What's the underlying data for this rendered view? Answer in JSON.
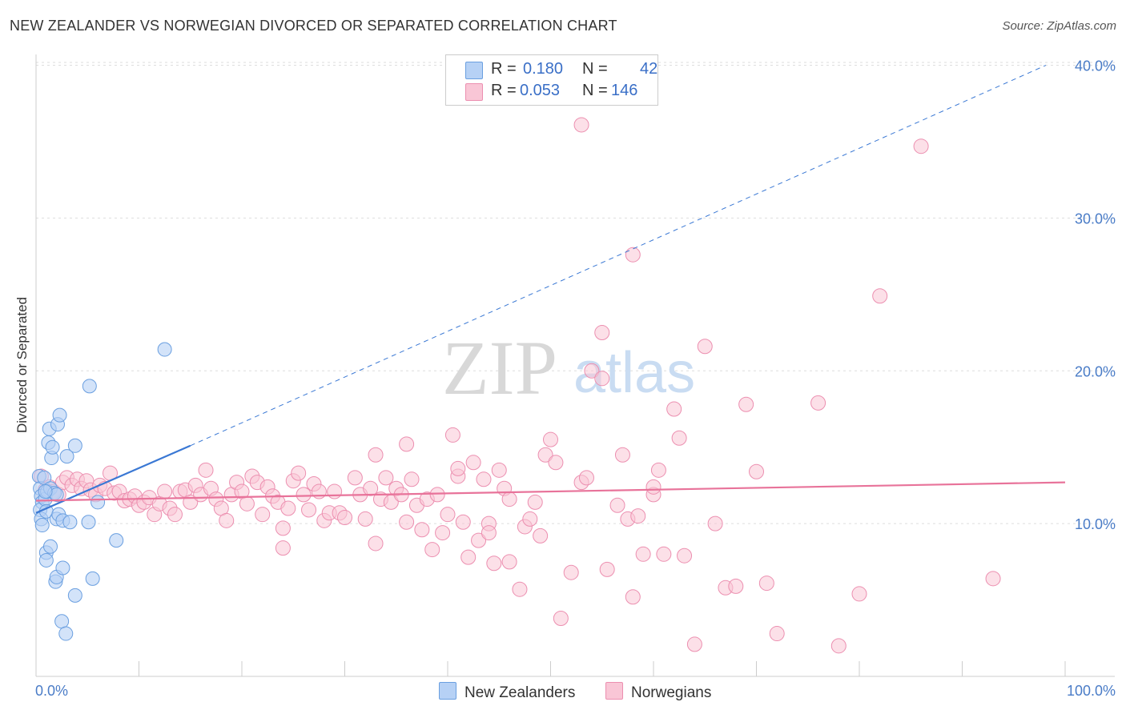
{
  "title": "NEW ZEALANDER VS NORWEGIAN DIVORCED OR SEPARATED CORRELATION CHART",
  "source": "Source: ZipAtlas.com",
  "watermark": {
    "zip": "ZIP",
    "atlas": "atlas"
  },
  "colors": {
    "series1_fill": "#b6d1f5",
    "series1_stroke": "#6a9fe0",
    "series1_line": "#3a78d4",
    "series2_fill": "#f9c6d6",
    "series2_stroke": "#ec8fb0",
    "series2_line": "#e8739a",
    "tick_text": "#4a7cc7",
    "grid": "#dddddd"
  },
  "legend": {
    "rows": [
      {
        "r_label": "R =",
        "r_value": "0.180",
        "n_label": "N =",
        "n_value": "42"
      },
      {
        "r_label": "R =",
        "r_value": "0.053",
        "n_label": "N =",
        "n_value": "146"
      }
    ]
  },
  "bottom_legend": [
    "New Zealanders",
    "Norwegians"
  ],
  "chart_data": {
    "type": "scatter",
    "title": "NEW ZEALANDER VS NORWEGIAN DIVORCED OR SEPARATED CORRELATION CHART",
    "xlabel": "",
    "ylabel": "Divorced or Separated",
    "xlim": [
      0,
      100
    ],
    "ylim": [
      0,
      40
    ],
    "x_tick_labels": [
      "0.0%",
      "100.0%"
    ],
    "y_ticks": [
      10,
      20,
      30,
      40
    ],
    "y_tick_labels": [
      "10.0%",
      "20.0%",
      "30.0%",
      "40.0%"
    ],
    "grid": true,
    "series": [
      {
        "name": "New Zealanders",
        "R": 0.18,
        "N": 42,
        "trend_solid": [
          [
            0.0,
            10.7
          ],
          [
            15.0,
            15.1
          ]
        ],
        "trend_dashed": [
          [
            15.0,
            15.1
          ],
          [
            100.0,
            40.0
          ]
        ],
        "points": [
          [
            0.3,
            13.1
          ],
          [
            0.4,
            12.3
          ],
          [
            0.5,
            11.8
          ],
          [
            0.6,
            11.4
          ],
          [
            0.4,
            10.9
          ],
          [
            0.5,
            10.3
          ],
          [
            0.6,
            9.9
          ],
          [
            0.8,
            13.0
          ],
          [
            0.9,
            11.6
          ],
          [
            1.0,
            10.8
          ],
          [
            1.1,
            12.1
          ],
          [
            1.2,
            15.3
          ],
          [
            1.3,
            16.2
          ],
          [
            1.4,
            12.3
          ],
          [
            1.5,
            14.3
          ],
          [
            1.6,
            15.0
          ],
          [
            1.8,
            12.0
          ],
          [
            2.0,
            10.3
          ],
          [
            2.2,
            10.6
          ],
          [
            2.0,
            11.9
          ],
          [
            2.1,
            16.5
          ],
          [
            2.3,
            17.1
          ],
          [
            2.6,
            10.2
          ],
          [
            3.0,
            14.4
          ],
          [
            3.3,
            10.1
          ],
          [
            3.8,
            15.1
          ],
          [
            5.2,
            19.0
          ],
          [
            5.1,
            10.1
          ],
          [
            6.0,
            11.4
          ],
          [
            7.8,
            8.9
          ],
          [
            12.5,
            21.4
          ],
          [
            1.0,
            8.1
          ],
          [
            1.0,
            7.6
          ],
          [
            1.4,
            8.5
          ],
          [
            1.9,
            6.2
          ],
          [
            2.0,
            6.5
          ],
          [
            2.6,
            7.1
          ],
          [
            3.8,
            5.3
          ],
          [
            2.5,
            3.6
          ],
          [
            2.9,
            2.8
          ],
          [
            5.5,
            6.4
          ],
          [
            0.9,
            12.1
          ]
        ]
      },
      {
        "name": "Norwegians",
        "R": 0.053,
        "N": 146,
        "trend_solid": [
          [
            0.0,
            11.5
          ],
          [
            100.0,
            12.7
          ]
        ],
        "points": [
          [
            0.5,
            13.1
          ],
          [
            0.9,
            12.2
          ],
          [
            1.3,
            12.4
          ],
          [
            1.7,
            12.1
          ],
          [
            2.2,
            11.9
          ],
          [
            2.6,
            12.7
          ],
          [
            3.0,
            13.0
          ],
          [
            3.5,
            12.5
          ],
          [
            4.0,
            12.9
          ],
          [
            4.4,
            12.3
          ],
          [
            4.9,
            12.8
          ],
          [
            5.3,
            12.2
          ],
          [
            5.8,
            11.9
          ],
          [
            6.2,
            12.5
          ],
          [
            6.7,
            12.3
          ],
          [
            7.2,
            13.3
          ],
          [
            7.6,
            12.0
          ],
          [
            8.1,
            12.1
          ],
          [
            8.6,
            11.5
          ],
          [
            9.1,
            11.6
          ],
          [
            9.6,
            11.8
          ],
          [
            10.0,
            11.2
          ],
          [
            10.5,
            11.4
          ],
          [
            11.0,
            11.7
          ],
          [
            11.5,
            10.6
          ],
          [
            12.0,
            11.3
          ],
          [
            12.5,
            12.1
          ],
          [
            13.0,
            11.0
          ],
          [
            13.5,
            10.6
          ],
          [
            14.0,
            12.1
          ],
          [
            14.5,
            12.2
          ],
          [
            15.0,
            11.4
          ],
          [
            15.5,
            12.5
          ],
          [
            16.0,
            11.9
          ],
          [
            16.5,
            13.5
          ],
          [
            17.0,
            12.3
          ],
          [
            17.5,
            11.6
          ],
          [
            18.0,
            11.0
          ],
          [
            18.5,
            10.2
          ],
          [
            19.0,
            11.9
          ],
          [
            19.5,
            12.7
          ],
          [
            20.0,
            12.1
          ],
          [
            20.5,
            11.3
          ],
          [
            21.0,
            13.1
          ],
          [
            21.5,
            12.7
          ],
          [
            22.0,
            10.6
          ],
          [
            22.5,
            12.4
          ],
          [
            23.0,
            11.8
          ],
          [
            23.5,
            11.4
          ],
          [
            24.0,
            9.7
          ],
          [
            24.5,
            11.0
          ],
          [
            25.0,
            12.8
          ],
          [
            25.5,
            13.3
          ],
          [
            26.0,
            11.9
          ],
          [
            26.5,
            10.9
          ],
          [
            27.0,
            12.6
          ],
          [
            27.5,
            12.1
          ],
          [
            28.0,
            10.2
          ],
          [
            28.5,
            10.7
          ],
          [
            29.0,
            12.1
          ],
          [
            29.5,
            10.7
          ],
          [
            30.0,
            10.4
          ],
          [
            31.0,
            13.0
          ],
          [
            31.5,
            11.9
          ],
          [
            32.0,
            10.3
          ],
          [
            32.5,
            12.3
          ],
          [
            33.0,
            14.5
          ],
          [
            33.5,
            11.6
          ],
          [
            34.0,
            13.0
          ],
          [
            34.5,
            11.4
          ],
          [
            35.0,
            12.3
          ],
          [
            35.5,
            11.9
          ],
          [
            36.0,
            10.1
          ],
          [
            36.5,
            12.9
          ],
          [
            37.0,
            11.2
          ],
          [
            37.5,
            9.6
          ],
          [
            38.0,
            11.6
          ],
          [
            38.5,
            8.3
          ],
          [
            39.0,
            11.9
          ],
          [
            39.5,
            9.4
          ],
          [
            40.0,
            10.6
          ],
          [
            40.5,
            15.8
          ],
          [
            41.0,
            13.1
          ],
          [
            41.5,
            10.1
          ],
          [
            42.0,
            7.8
          ],
          [
            42.5,
            14.0
          ],
          [
            43.0,
            8.9
          ],
          [
            43.5,
            12.9
          ],
          [
            44.0,
            10.0
          ],
          [
            44.5,
            7.4
          ],
          [
            45.0,
            13.5
          ],
          [
            45.5,
            12.3
          ],
          [
            46.0,
            11.6
          ],
          [
            47.0,
            5.7
          ],
          [
            47.5,
            9.8
          ],
          [
            48.0,
            10.3
          ],
          [
            48.5,
            11.4
          ],
          [
            49.0,
            9.2
          ],
          [
            49.5,
            14.5
          ],
          [
            50.0,
            15.5
          ],
          [
            50.5,
            14.0
          ],
          [
            51.0,
            3.8
          ],
          [
            52.0,
            6.8
          ],
          [
            53.0,
            12.7
          ],
          [
            54.0,
            20.0
          ],
          [
            55.0,
            19.5
          ],
          [
            55.5,
            7.0
          ],
          [
            56.5,
            11.2
          ],
          [
            57.0,
            14.5
          ],
          [
            57.5,
            10.3
          ],
          [
            58.0,
            5.2
          ],
          [
            59.0,
            8.0
          ],
          [
            60.0,
            11.9
          ],
          [
            61.0,
            8.0
          ],
          [
            62.0,
            17.5
          ],
          [
            63.0,
            7.9
          ],
          [
            64.0,
            2.1
          ],
          [
            65.0,
            21.6
          ],
          [
            66.0,
            10.0
          ],
          [
            67.0,
            5.8
          ],
          [
            68.0,
            5.9
          ],
          [
            69.0,
            17.8
          ],
          [
            70.0,
            13.4
          ],
          [
            71.0,
            6.1
          ],
          [
            72.0,
            2.8
          ],
          [
            76.0,
            17.9
          ],
          [
            78.0,
            2.0
          ],
          [
            80.0,
            5.4
          ],
          [
            82.0,
            24.9
          ],
          [
            86.0,
            34.7
          ],
          [
            93.0,
            6.4
          ],
          [
            53.0,
            36.1
          ],
          [
            58.0,
            27.6
          ],
          [
            58.5,
            10.5
          ],
          [
            62.5,
            15.6
          ],
          [
            60.5,
            13.5
          ],
          [
            46.0,
            7.5
          ],
          [
            44.0,
            9.4
          ],
          [
            33.0,
            8.7
          ],
          [
            24.0,
            8.4
          ],
          [
            41.0,
            13.6
          ],
          [
            53.5,
            13.0
          ],
          [
            55.0,
            22.5
          ],
          [
            60.0,
            12.4
          ],
          [
            36.0,
            15.2
          ]
        ]
      }
    ]
  }
}
